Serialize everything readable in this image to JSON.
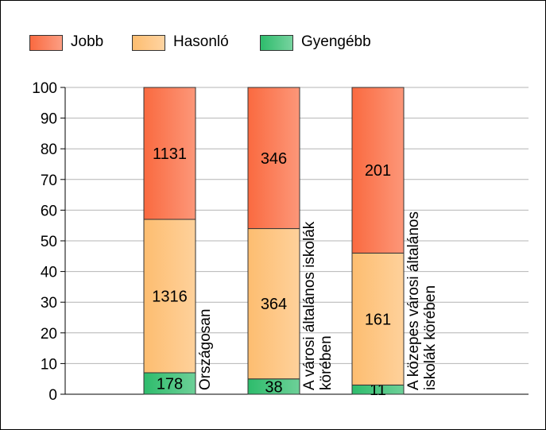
{
  "legend": {
    "items": [
      {
        "label": "Jobb",
        "color": "#fa6a40"
      },
      {
        "label": "Hasonló",
        "color": "#fdbd70"
      },
      {
        "label": "Gyengébb",
        "color": "#2ebc6c"
      }
    ]
  },
  "chart_data": {
    "type": "bar",
    "stacked": true,
    "categories": [
      "Országosan",
      "A városi általános iskolák körében",
      "A közepes városi általános iskolák körében"
    ],
    "category_label_lines": [
      [
        "Országosan"
      ],
      [
        "A városi általános iskolák",
        "körében"
      ],
      [
        "A közepes városi általános",
        "iskolák körében"
      ]
    ],
    "series": [
      {
        "name": "Gyengébb",
        "color": "#2ebc6c",
        "values": [
          7,
          5,
          3
        ],
        "labels": [
          "178",
          "38",
          "11"
        ]
      },
      {
        "name": "Hasonló",
        "color": "#fdbd70",
        "values": [
          50,
          49,
          43
        ],
        "labels": [
          "1316",
          "364",
          "161"
        ]
      },
      {
        "name": "Jobb",
        "color": "#fa6a40",
        "values": [
          43,
          46,
          54
        ],
        "labels": [
          "1131",
          "346",
          "201"
        ]
      }
    ],
    "ylim": [
      0,
      100
    ],
    "yticks": [
      0,
      10,
      20,
      30,
      40,
      50,
      60,
      70,
      80,
      90,
      100
    ],
    "grid": true,
    "legend_position": "top-left",
    "title": "",
    "xlabel": "",
    "ylabel": ""
  }
}
